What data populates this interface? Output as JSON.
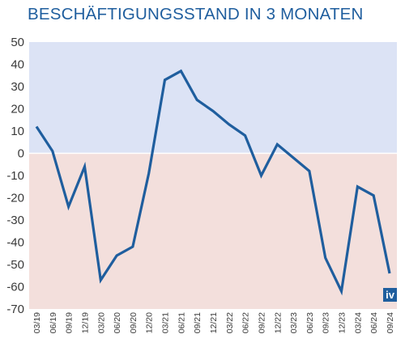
{
  "title": "BESCHÄFTIGUNGSSTAND IN 3 MONATEN",
  "logo": {
    "text": "iv"
  },
  "colors": {
    "title": "#1f5e9e",
    "line": "#1f5e9e",
    "positive_band": "#dce3f5",
    "negative_band": "#f3dfdc",
    "zero_line": "#ffffff",
    "logo_bg": "#1f5e9e"
  },
  "chart_data": {
    "type": "line",
    "title": "BESCHÄFTIGUNGSSTAND IN 3 MONATEN",
    "xlabel": "",
    "ylabel": "",
    "ylim": [
      -70,
      50
    ],
    "yticks": [
      50,
      40,
      30,
      20,
      10,
      0,
      -10,
      -20,
      -30,
      -40,
      -50,
      -60,
      -70
    ],
    "grid": false,
    "categories": [
      "03/19",
      "06/19",
      "09/19",
      "12/19",
      "03/20",
      "06/20",
      "09/20",
      "12/20",
      "03/21",
      "06/21",
      "09/21",
      "12/21",
      "03/22",
      "06/22",
      "09/22",
      "12/22",
      "03/23",
      "06/23",
      "09/23",
      "12/23",
      "03/24",
      "06/24",
      "09/24"
    ],
    "series": [
      {
        "values": [
          12,
          1,
          -24,
          -6,
          -57,
          -46,
          -42,
          -9,
          33,
          37,
          24,
          19,
          13,
          8,
          -10,
          4,
          -2,
          -8,
          -47,
          -62,
          -15,
          -19,
          -54
        ]
      }
    ]
  }
}
